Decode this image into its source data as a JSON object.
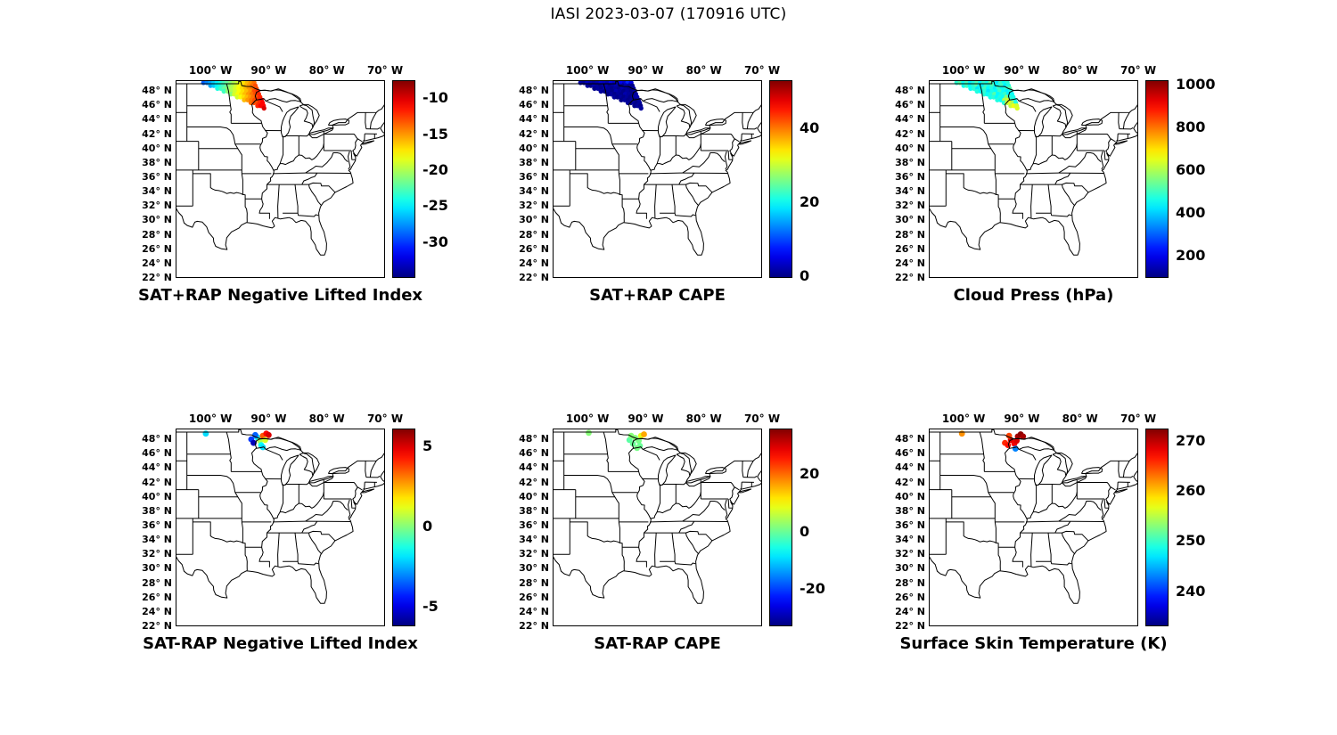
{
  "title": "IASI 2023-03-07 (170916 UTC)",
  "axes": {
    "lon_tick_labels": [
      "100° W",
      "90° W",
      "80° W",
      "70° W"
    ],
    "lon_tick_values": [
      -100,
      -90,
      -80,
      -70
    ],
    "lat_tick_labels": [
      "48° N",
      "46° N",
      "44° N",
      "42° N",
      "40° N",
      "38° N",
      "36° N",
      "34° N",
      "32° N",
      "30° N",
      "28° N",
      "26° N",
      "24° N",
      "22° N"
    ],
    "lat_tick_values": [
      48,
      46,
      44,
      42,
      40,
      38,
      36,
      34,
      32,
      30,
      28,
      26,
      24,
      22
    ],
    "lon_range": [
      -106,
      -70
    ],
    "lat_range": [
      22,
      49.5
    ]
  },
  "swath_points": {
    "lons": [
      -101.2,
      -100.62,
      -100.04,
      -99.46,
      -98.88,
      -98.3,
      -97.72,
      -97.14,
      -96.56,
      -95.98,
      -95.4,
      -94.82,
      -94.24,
      -93.66,
      -93.08,
      -92.5,
      -100.0,
      -99.45,
      -98.9,
      -98.35,
      -97.8,
      -97.25,
      -96.7,
      -96.15,
      -95.6,
      -95.05,
      -94.5,
      -93.95,
      -93.4,
      -92.85,
      -92.3,
      -98.8,
      -98.2,
      -97.6,
      -97.0,
      -96.4,
      -95.8,
      -95.2,
      -94.6,
      -94.0,
      -93.4,
      -92.8,
      -92.1,
      -97.7,
      -97.05,
      -96.4,
      -95.75,
      -95.1,
      -94.45,
      -93.8,
      -93.15,
      -92.5,
      -91.9,
      -96.5,
      -95.9,
      -95.3,
      -94.7,
      -94.1,
      -93.5,
      -92.9,
      -92.3,
      -91.7,
      -95.4,
      -94.85,
      -94.3,
      -93.75,
      -93.2,
      -92.65,
      -92.1,
      -91.5,
      -94.2,
      -93.6,
      -93.0,
      -92.4,
      -91.8,
      -91.25,
      -93.05,
      -92.55,
      -92.05,
      -91.55,
      -91.05,
      -91.9,
      -91.4,
      -90.9,
      -90.8
    ],
    "lats": [
      49.15,
      49.15,
      49.15,
      49.15,
      49.15,
      49.15,
      49.15,
      49.15,
      49.15,
      49.15,
      49.15,
      49.15,
      49.15,
      49.15,
      49.15,
      49.15,
      48.75,
      48.75,
      48.75,
      48.75,
      48.75,
      48.75,
      48.75,
      48.75,
      48.75,
      48.75,
      48.75,
      48.75,
      48.75,
      48.75,
      48.75,
      48.35,
      48.35,
      48.35,
      48.35,
      48.35,
      48.35,
      48.35,
      48.35,
      48.35,
      48.35,
      48.35,
      48.35,
      47.95,
      47.95,
      47.95,
      47.95,
      47.95,
      47.95,
      47.95,
      47.95,
      47.95,
      47.95,
      47.55,
      47.55,
      47.55,
      47.55,
      47.55,
      47.55,
      47.55,
      47.55,
      47.55,
      47.15,
      47.15,
      47.15,
      47.15,
      47.15,
      47.15,
      47.15,
      47.15,
      46.75,
      46.75,
      46.75,
      46.75,
      46.75,
      46.75,
      46.35,
      46.35,
      46.35,
      46.35,
      46.35,
      45.95,
      45.95,
      45.95,
      45.6
    ]
  },
  "chart_data": [
    {
      "id": "sat-plus-rap-lifted-index",
      "type": "scatter",
      "title": "SAT+RAP Negative Lifted Index",
      "colormap": "jet",
      "vmin": -35,
      "vmax": -7.5,
      "colorbar_ticks": [
        {
          "label": "-10",
          "value": -10
        },
        {
          "label": "-15",
          "value": -15
        },
        {
          "label": "-20",
          "value": -20
        },
        {
          "label": "-25",
          "value": -25
        },
        {
          "label": "-30",
          "value": -30
        }
      ],
      "points": "swath",
      "values": [
        -29,
        -28,
        -27,
        -26,
        -25,
        -24,
        -23,
        -22,
        -21,
        -20,
        -19,
        -18,
        -17,
        -16,
        -15,
        -14,
        -27,
        -26,
        -25,
        -24,
        -23,
        -22,
        -21,
        -20,
        -19,
        -18,
        -17,
        -16,
        -15,
        -14,
        -13,
        -24,
        -23,
        -22,
        -21,
        -20,
        -19,
        -18,
        -17,
        -16,
        -15,
        -14,
        -13,
        -23,
        -21,
        -20,
        -19,
        -18,
        -17,
        -16,
        -15,
        -13,
        -12,
        -21,
        -19,
        -18,
        -17,
        -16,
        -15,
        -14,
        -13,
        -12,
        -19,
        -18,
        -17,
        -16,
        -15,
        -14,
        -13,
        -12,
        -16,
        -15,
        -14,
        -13,
        -12,
        -11,
        -14,
        -13,
        -13,
        -12,
        -11,
        -12,
        -11,
        -11,
        -10
      ]
    },
    {
      "id": "sat-plus-rap-cape",
      "type": "scatter",
      "title": "SAT+RAP CAPE",
      "colormap": "jet",
      "vmin": -0.5,
      "vmax": 53,
      "colorbar_ticks": [
        {
          "label": "40",
          "value": 40
        },
        {
          "label": "20",
          "value": 20
        },
        {
          "label": "0",
          "value": 0
        }
      ],
      "points": "swath",
      "values": [
        2,
        1,
        3,
        2,
        1,
        2,
        4,
        3,
        2,
        5,
        3,
        2,
        6,
        4,
        8,
        5,
        1,
        0,
        2,
        1,
        0,
        1,
        2,
        0,
        1,
        2,
        1,
        0,
        2,
        1,
        0,
        0,
        1,
        0,
        2,
        1,
        0,
        1,
        0,
        2,
        1,
        0,
        1,
        1,
        0,
        1,
        0,
        2,
        1,
        0,
        1,
        0,
        1,
        0,
        1,
        0,
        1,
        0,
        2,
        1,
        0,
        1,
        1,
        0,
        1,
        0,
        1,
        0,
        1,
        2,
        0,
        1,
        0,
        1,
        0,
        1,
        1,
        0,
        1,
        0,
        1,
        0,
        1,
        0,
        1
      ]
    },
    {
      "id": "cloud-press",
      "type": "scatter",
      "title": "Cloud Press (hPa)",
      "colormap": "jet",
      "vmin": 95,
      "vmax": 1020,
      "colorbar_ticks": [
        {
          "label": "1000",
          "value": 1000
        },
        {
          "label": "800",
          "value": 800
        },
        {
          "label": "600",
          "value": 600
        },
        {
          "label": "400",
          "value": 400
        },
        {
          "label": "200",
          "value": 200
        }
      ],
      "points": "swath",
      "values": [
        480,
        520,
        450,
        500,
        430,
        470,
        510,
        440,
        490,
        460,
        530,
        470,
        420,
        500,
        450,
        480,
        460,
        500,
        440,
        480,
        520,
        450,
        430,
        490,
        470,
        510,
        440,
        460,
        500,
        430,
        470,
        450,
        480,
        420,
        460,
        500,
        440,
        470,
        430,
        490,
        450,
        480,
        520,
        470,
        440,
        480,
        420,
        460,
        440,
        500,
        450,
        430,
        470,
        480,
        450,
        470,
        520,
        440,
        460,
        490,
        430,
        450,
        460,
        480,
        440,
        470,
        450,
        560,
        480,
        460,
        470,
        450,
        600,
        630,
        480,
        460,
        480,
        620,
        650,
        600,
        470,
        620,
        660,
        630,
        640
      ]
    },
    {
      "id": "sat-minus-rap-lifted-index",
      "type": "scatter",
      "title": "SAT-RAP Negative Lifted Index",
      "colormap": "jet",
      "vmin": -6.2,
      "vmax": 6.1,
      "colorbar_ticks": [
        {
          "label": "5",
          "value": 5
        },
        {
          "label": "0",
          "value": 0
        },
        {
          "label": "-5",
          "value": -5
        }
      ],
      "points": {
        "lons": [
          -100.8,
          -93.0,
          -92.6,
          -92.0,
          -91.5,
          -91.0,
          -90.4,
          -90.0,
          -91.3,
          -91.0,
          -90.6,
          -92.3
        ],
        "lats": [
          48.8,
          48.0,
          47.5,
          48.3,
          47.8,
          48.5,
          48.8,
          48.6,
          47.2,
          46.9,
          47.9,
          48.6
        ]
      },
      "values": [
        -2,
        -4,
        -5.5,
        -2,
        0.5,
        3.5,
        4.5,
        5,
        -1.5,
        -2,
        1,
        -3.5
      ]
    },
    {
      "id": "sat-minus-rap-cape",
      "type": "scatter",
      "title": "SAT-RAP CAPE",
      "colormap": "jet",
      "vmin": -33,
      "vmax": 36,
      "colorbar_ticks": [
        {
          "label": "20",
          "value": 20
        },
        {
          "label": "0",
          "value": 0
        },
        {
          "label": "-20",
          "value": -20
        }
      ],
      "points": {
        "lons": [
          -99.8,
          -92.8,
          -92.2,
          -91.8,
          -91.2,
          -90.8,
          -90.3,
          -91.0,
          -91.5,
          -92.5
        ],
        "lats": [
          48.9,
          47.9,
          47.4,
          48.2,
          47.8,
          48.5,
          48.7,
          47.1,
          46.8,
          48.5
        ]
      },
      "values": [
        2,
        -1,
        0,
        2,
        1,
        8,
        16,
        0,
        1,
        2
      ]
    },
    {
      "id": "surface-skin-temperature",
      "type": "scatter",
      "title": "Surface Skin Temperature (K)",
      "colormap": "jet",
      "vmin": 233,
      "vmax": 272.5,
      "colorbar_ticks": [
        {
          "label": "270",
          "value": 270
        },
        {
          "label": "260",
          "value": 260
        },
        {
          "label": "250",
          "value": 250
        },
        {
          "label": "240",
          "value": 240
        }
      ],
      "points": {
        "lons": [
          -100.3,
          -92.9,
          -92.4,
          -91.9,
          -91.3,
          -90.7,
          -90.2,
          -89.8,
          -91.1,
          -92.2,
          -90.9
        ],
        "lats": [
          48.8,
          47.5,
          47.2,
          47.9,
          47.4,
          48.4,
          48.7,
          48.4,
          46.7,
          48.5,
          47.8
        ]
      },
      "values": [
        262,
        266,
        267,
        269,
        268,
        271,
        272,
        271,
        243,
        265,
        269
      ]
    }
  ]
}
